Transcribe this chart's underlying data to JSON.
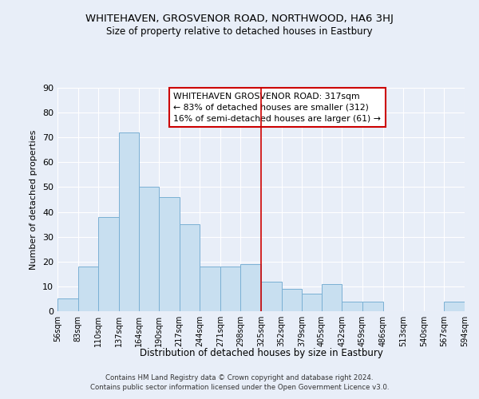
{
  "title": "WHITEHAVEN, GROSVENOR ROAD, NORTHWOOD, HA6 3HJ",
  "subtitle": "Size of property relative to detached houses in Eastbury",
  "xlabel": "Distribution of detached houses by size in Eastbury",
  "ylabel": "Number of detached properties",
  "bar_color": "#c8dff0",
  "bar_edge_color": "#7ab0d4",
  "background_color": "#e8eef8",
  "grid_color": "#ffffff",
  "vline_x": 325,
  "vline_color": "#cc0000",
  "bin_edges": [
    56,
    83,
    110,
    137,
    164,
    190,
    217,
    244,
    271,
    298,
    325,
    352,
    379,
    405,
    432,
    459,
    486,
    513,
    540,
    567,
    594
  ],
  "bin_labels": [
    "56sqm",
    "83sqm",
    "110sqm",
    "137sqm",
    "164sqm",
    "190sqm",
    "217sqm",
    "244sqm",
    "271sqm",
    "298sqm",
    "325sqm",
    "352sqm",
    "379sqm",
    "405sqm",
    "432sqm",
    "459sqm",
    "486sqm",
    "513sqm",
    "540sqm",
    "567sqm",
    "594sqm"
  ],
  "counts": [
    5,
    18,
    38,
    72,
    50,
    46,
    35,
    18,
    18,
    19,
    12,
    9,
    7,
    11,
    4,
    4,
    0,
    0,
    0,
    4
  ],
  "ylim": [
    0,
    90
  ],
  "yticks": [
    0,
    10,
    20,
    30,
    40,
    50,
    60,
    70,
    80,
    90
  ],
  "annotation_title": "WHITEHAVEN GROSVENOR ROAD: 317sqm",
  "annotation_line1": "← 83% of detached houses are smaller (312)",
  "annotation_line2": "16% of semi-detached houses are larger (61) →",
  "annotation_box_color": "#ffffff",
  "annotation_border_color": "#cc0000",
  "footer1": "Contains HM Land Registry data © Crown copyright and database right 2024.",
  "footer2": "Contains public sector information licensed under the Open Government Licence v3.0."
}
